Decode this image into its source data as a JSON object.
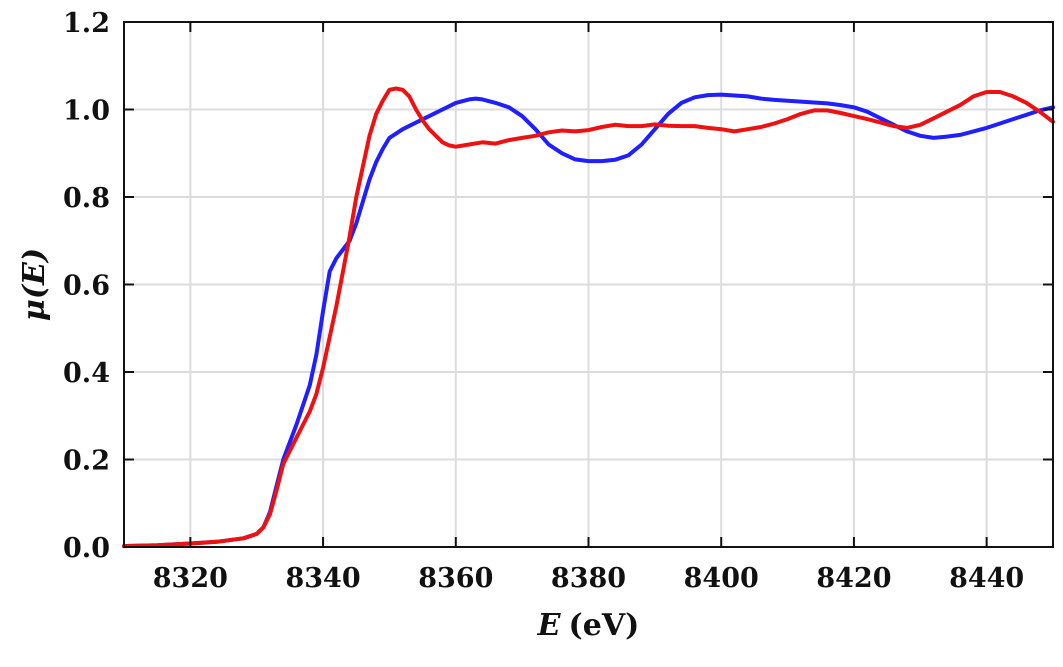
{
  "chart_data": {
    "type": "line",
    "title": "",
    "xlabel_var": "E",
    "xlabel_unit": "(eV)",
    "ylabel": "μ(E)",
    "xlim": [
      8310,
      8450
    ],
    "ylim": [
      0.0,
      1.2
    ],
    "xticks": [
      8320,
      8340,
      8360,
      8380,
      8400,
      8420,
      8440
    ],
    "yticks": [
      0.0,
      0.2,
      0.4,
      0.6,
      0.8,
      1.0,
      1.2
    ],
    "xtick_labels": [
      "8320",
      "8340",
      "8360",
      "8380",
      "8400",
      "8420",
      "8440"
    ],
    "ytick_labels": [
      "0.0",
      "0.2",
      "0.4",
      "0.6",
      "0.8",
      "1.0",
      "1.2"
    ],
    "grid": true,
    "series": [
      {
        "color": "#1f1fff",
        "x": [
          8310,
          8315,
          8320,
          8324,
          8328,
          8330,
          8331,
          8332,
          8333,
          8334,
          8336,
          8338,
          8339,
          8340,
          8341,
          8342,
          8343,
          8344,
          8345,
          8346,
          8347,
          8348,
          8349,
          8350,
          8351,
          8352,
          8354,
          8356,
          8358,
          8360,
          8362,
          8363,
          8364,
          8366,
          8368,
          8370,
          8372,
          8374,
          8376,
          8378,
          8380,
          8382,
          8384,
          8386,
          8388,
          8390,
          8392,
          8394,
          8396,
          8398,
          8400,
          8402,
          8404,
          8406,
          8408,
          8410,
          8412,
          8414,
          8416,
          8418,
          8420,
          8422,
          8424,
          8426,
          8428,
          8430,
          8432,
          8434,
          8436,
          8438,
          8440,
          8442,
          8444,
          8446,
          8448,
          8450
        ],
        "y": [
          0.002,
          0.004,
          0.008,
          0.012,
          0.02,
          0.03,
          0.045,
          0.08,
          0.14,
          0.2,
          0.28,
          0.37,
          0.44,
          0.54,
          0.63,
          0.66,
          0.68,
          0.7,
          0.74,
          0.79,
          0.84,
          0.88,
          0.91,
          0.935,
          0.945,
          0.955,
          0.97,
          0.985,
          1.0,
          1.015,
          1.023,
          1.025,
          1.023,
          1.015,
          1.005,
          0.985,
          0.955,
          0.92,
          0.9,
          0.886,
          0.882,
          0.882,
          0.885,
          0.895,
          0.92,
          0.955,
          0.99,
          1.015,
          1.028,
          1.033,
          1.034,
          1.032,
          1.03,
          1.025,
          1.022,
          1.02,
          1.018,
          1.016,
          1.014,
          1.01,
          1.005,
          0.995,
          0.98,
          0.965,
          0.95,
          0.94,
          0.935,
          0.938,
          0.942,
          0.95,
          0.958,
          0.968,
          0.978,
          0.988,
          0.998,
          1.005
        ]
      },
      {
        "color": "#ee1111",
        "x": [
          8310,
          8315,
          8320,
          8324,
          8328,
          8330,
          8331,
          8332,
          8333,
          8334,
          8336,
          8338,
          8339,
          8340,
          8341,
          8342,
          8343,
          8344,
          8345,
          8346,
          8347,
          8348,
          8349,
          8350,
          8351,
          8352,
          8353,
          8354,
          8355,
          8356,
          8357,
          8358,
          8359,
          8360,
          8362,
          8364,
          8366,
          8368,
          8370,
          8372,
          8374,
          8376,
          8378,
          8380,
          8382,
          8384,
          8386,
          8388,
          8390,
          8392,
          8394,
          8396,
          8398,
          8400,
          8402,
          8404,
          8406,
          8408,
          8410,
          8412,
          8414,
          8416,
          8418,
          8420,
          8422,
          8424,
          8426,
          8428,
          8430,
          8432,
          8434,
          8436,
          8438,
          8440,
          8442,
          8444,
          8446,
          8448,
          8450
        ],
        "y": [
          0.002,
          0.004,
          0.008,
          0.012,
          0.02,
          0.03,
          0.045,
          0.075,
          0.13,
          0.19,
          0.25,
          0.31,
          0.35,
          0.41,
          0.48,
          0.55,
          0.63,
          0.71,
          0.8,
          0.87,
          0.94,
          0.99,
          1.02,
          1.045,
          1.048,
          1.045,
          1.03,
          1.0,
          0.975,
          0.955,
          0.94,
          0.925,
          0.918,
          0.915,
          0.92,
          0.925,
          0.922,
          0.93,
          0.935,
          0.94,
          0.948,
          0.952,
          0.95,
          0.953,
          0.96,
          0.965,
          0.962,
          0.962,
          0.966,
          0.963,
          0.962,
          0.962,
          0.958,
          0.955,
          0.95,
          0.955,
          0.96,
          0.968,
          0.978,
          0.99,
          0.998,
          0.998,
          0.992,
          0.985,
          0.978,
          0.97,
          0.962,
          0.958,
          0.965,
          0.98,
          0.995,
          1.01,
          1.03,
          1.04,
          1.04,
          1.03,
          1.015,
          0.995,
          0.972
        ]
      }
    ]
  }
}
